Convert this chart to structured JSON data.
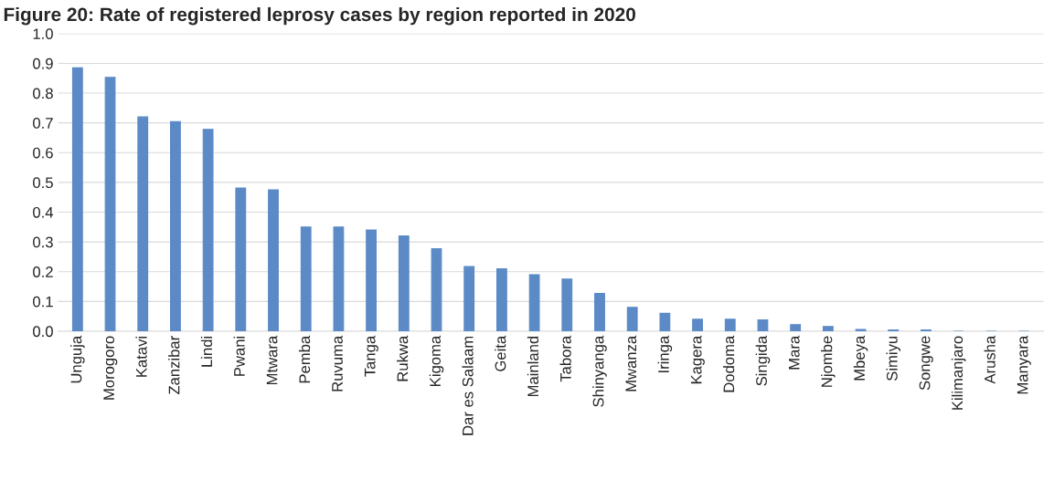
{
  "chart_data": {
    "type": "bar",
    "title": "Figure 20: Rate of registered leprosy cases by region reported in 2020",
    "categories": [
      "Unguja",
      "Morogoro",
      "Katavi",
      "Zanzibar",
      "Lindi",
      "Pwani",
      "Mtwara",
      "Pemba",
      "Ruvuma",
      "Tanga",
      "Rukwa",
      "Kigoma",
      "Dar es Salaam",
      "Geita",
      "Mainland",
      "Tabora",
      "Shinyanga",
      "Mwanza",
      "Iringa",
      "Kagera",
      "Dodoma",
      "Singida",
      "Mara",
      "Njombe",
      "Mbeya",
      "Simiyu",
      "Songwe",
      "Kilimanjaro",
      "Arusha",
      "Manyara"
    ],
    "values": [
      0.885,
      0.853,
      0.72,
      0.704,
      0.678,
      0.481,
      0.475,
      0.35,
      0.35,
      0.34,
      0.32,
      0.277,
      0.217,
      0.21,
      0.19,
      0.175,
      0.127,
      0.08,
      0.06,
      0.04,
      0.04,
      0.038,
      0.022,
      0.016,
      0.006,
      0.004,
      0.004,
      0,
      0,
      0
    ],
    "color": "#5b8ac6",
    "ylim": [
      0,
      1.0
    ],
    "yticks": [
      {
        "value": 0,
        "label": "0.0"
      },
      {
        "value": 0.1,
        "label": "0.1"
      },
      {
        "value": 0.2,
        "label": "0.2"
      },
      {
        "value": 0.3,
        "label": "0.3"
      },
      {
        "value": 0.4,
        "label": "0.4"
      },
      {
        "value": 0.5,
        "label": "0.5"
      },
      {
        "value": 0.6,
        "label": "0.6"
      },
      {
        "value": 0.7,
        "label": "0.7"
      },
      {
        "value": 0.8,
        "label": "0.8"
      },
      {
        "value": 0.9,
        "label": "0.9"
      },
      {
        "value": 1.0,
        "label": "1.0"
      }
    ],
    "grid": "y",
    "legend": false
  }
}
